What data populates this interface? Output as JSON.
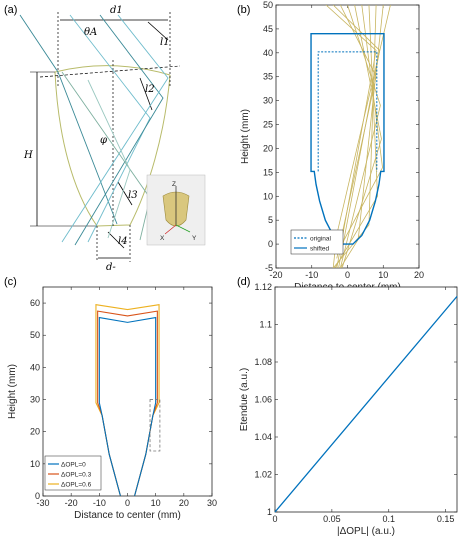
{
  "panels": {
    "a": {
      "label": "(a)",
      "symbols": [
        "d1",
        "θA",
        "l1",
        "l2",
        "φ",
        "H",
        "l3",
        "l4",
        "d-"
      ],
      "inset_axes": [
        "Z",
        "X",
        "Y"
      ]
    },
    "b": {
      "label": "(b)"
    },
    "c": {
      "label": "(c)"
    },
    "d": {
      "label": "(d)"
    }
  },
  "colors": {
    "blue": "#0072BD",
    "orange": "#D95319",
    "yellow": "#EDB120",
    "ray_gold": "#c8b560",
    "ray_cyan": "#6fbccc",
    "ray_teal": "#3b8a97",
    "gray": "#777777",
    "outline_olive": "#b8bb6a"
  },
  "chart_data": [
    {
      "id": "b",
      "type": "line",
      "xlabel": "Distance to center (mm)",
      "ylabel": "Height (mm)",
      "xlim": [
        -20,
        20
      ],
      "ylim": [
        -5,
        50
      ],
      "xticks": [
        "-20",
        "-10",
        "0",
        "10",
        "20"
      ],
      "yticks": [
        "-5",
        "0",
        "5",
        "10",
        "15",
        "20",
        "25",
        "30",
        "35",
        "40",
        "45",
        "50"
      ],
      "legend_position": "bottom-left",
      "series": [
        {
          "name": "original",
          "style": "dotted",
          "color": "#0072BD",
          "points": [
            [
              -8.2,
              15.2
            ],
            [
              -8.2,
              40.2
            ],
            [
              8.2,
              40.2
            ],
            [
              8.2,
              15.2
            ]
          ]
        },
        {
          "name": "shifted",
          "style": "solid",
          "color": "#0072BD",
          "points": [
            [
              -1.5,
              0
            ],
            [
              -4,
              1.8
            ],
            [
              -6.2,
              5
            ],
            [
              -7.8,
              9
            ],
            [
              -8.8,
              12.5
            ],
            [
              -9.3,
              15.2
            ],
            [
              -10.2,
              15.2
            ],
            [
              -10.2,
              44
            ],
            [
              10.2,
              44
            ],
            [
              10.2,
              15.2
            ],
            [
              9.3,
              15.2
            ],
            [
              8.8,
              12.5
            ],
            [
              7.8,
              9
            ],
            [
              6.2,
              5
            ],
            [
              4,
              1.8
            ],
            [
              1.5,
              0
            ],
            [
              -1.5,
              0
            ]
          ]
        }
      ],
      "rays": [
        [
          [
            -6,
            50
          ],
          [
            8,
            40.5
          ],
          [
            -3,
            -5
          ]
        ],
        [
          [
            -4,
            50
          ],
          [
            9,
            40.5
          ],
          [
            -2.5,
            -5
          ]
        ],
        [
          [
            -2,
            50
          ],
          [
            8,
            35
          ],
          [
            -3,
            -3
          ]
        ],
        [
          [
            0,
            50
          ],
          [
            9.2,
            29
          ],
          [
            -2,
            -5
          ]
        ],
        [
          [
            2,
            50
          ],
          [
            9.5,
            22
          ],
          [
            -1.5,
            -5
          ]
        ],
        [
          [
            4,
            50
          ],
          [
            9.8,
            16
          ],
          [
            -3,
            -2
          ]
        ],
        [
          [
            6,
            50
          ],
          [
            8.4,
            10
          ],
          [
            -3.5,
            -5
          ]
        ],
        [
          [
            8,
            50
          ],
          [
            6,
            4
          ],
          [
            -4,
            -5
          ]
        ],
        [
          [
            10,
            50
          ],
          [
            3,
            1
          ],
          [
            -2,
            -5
          ]
        ],
        [
          [
            12,
            50
          ],
          [
            -3,
            2
          ],
          [
            -4,
            -5
          ]
        ]
      ]
    },
    {
      "id": "c",
      "type": "line",
      "xlabel": "Distance to center (mm)",
      "ylabel": "Height (mm)",
      "xlim": [
        -30,
        30
      ],
      "ylim": [
        0,
        65
      ],
      "xticks": [
        "-30",
        "-20",
        "-10",
        "0",
        "10",
        "20",
        "30"
      ],
      "yticks": [
        "0",
        "10",
        "20",
        "30",
        "40",
        "50",
        "60"
      ],
      "legend_position": "bottom-left",
      "series": [
        {
          "name": "ΔOPL=0",
          "color": "#0072BD",
          "points": [
            [
              -2.5,
              0
            ],
            [
              -6.5,
              13
            ],
            [
              -9,
              25
            ],
            [
              -10,
              29
            ],
            [
              -10,
              55.5
            ],
            [
              0,
              54
            ],
            [
              10,
              55.5
            ],
            [
              10,
              29
            ],
            [
              9,
              25
            ],
            [
              6.5,
              13
            ],
            [
              2.5,
              0
            ]
          ]
        },
        {
          "name": "ΔOPL=0.3",
          "color": "#D95319",
          "points": [
            [
              -2.5,
              0
            ],
            [
              -6.5,
              13
            ],
            [
              -9,
              25
            ],
            [
              -10.6,
              29
            ],
            [
              -10.6,
              57.5
            ],
            [
              0,
              56
            ],
            [
              10.6,
              57.5
            ],
            [
              10.6,
              29
            ],
            [
              9,
              25
            ],
            [
              6.5,
              13
            ],
            [
              2.5,
              0
            ]
          ]
        },
        {
          "name": "ΔOPL=0.6",
          "color": "#EDB120",
          "points": [
            [
              -2.5,
              0
            ],
            [
              -6.5,
              13
            ],
            [
              -9,
              25
            ],
            [
              -11.2,
              29
            ],
            [
              -11.2,
              59.5
            ],
            [
              0,
              58
            ],
            [
              11.2,
              59.5
            ],
            [
              11.2,
              29
            ],
            [
              9,
              25
            ],
            [
              6.5,
              13
            ],
            [
              2.5,
              0
            ]
          ]
        }
      ],
      "highlight_box": [
        [
          8,
          14
        ],
        [
          11.5,
          30
        ]
      ]
    },
    {
      "id": "d",
      "type": "line",
      "xlabel": "|ΔOPL| (a.u.)",
      "ylabel": "Etendue (a.u.)",
      "xlim": [
        0,
        0.16
      ],
      "ylim": [
        1,
        1.12
      ],
      "xticks": [
        "0",
        "0.05",
        "0.1",
        "0.15"
      ],
      "yticks": [
        "1",
        "1.02",
        "1.04",
        "1.06",
        "1.08",
        "1.1",
        "1.12"
      ],
      "series": [
        {
          "color": "#0072BD",
          "x": [
            0,
            0.16
          ],
          "y": [
            1,
            1.115
          ]
        }
      ]
    }
  ]
}
